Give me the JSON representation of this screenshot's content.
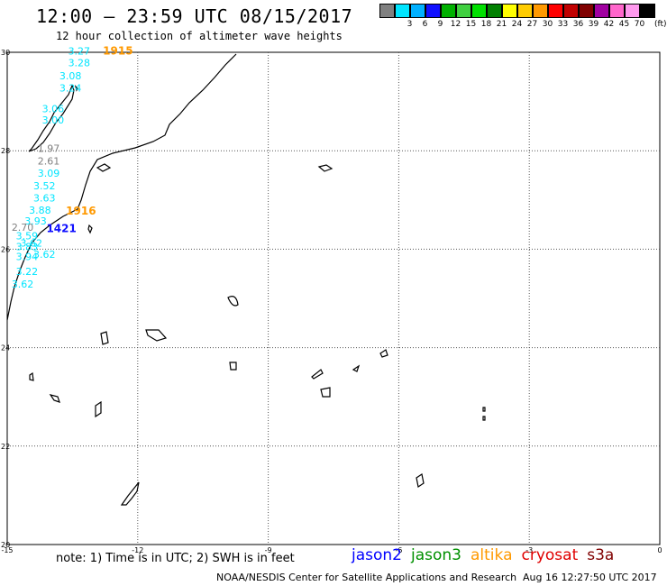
{
  "title": "12:00 – 23:59 UTC 08/15/2017",
  "subtitle": "12 hour collection of altimeter wave heights",
  "legend": {
    "unit": "(ft)",
    "items": [
      {
        "color": "#808080",
        "label": ""
      },
      {
        "color": "#00e5ff",
        "label": "3"
      },
      {
        "color": "#00b0ff",
        "label": "6"
      },
      {
        "color": "#1010ff",
        "label": "9"
      },
      {
        "color": "#00b000",
        "label": "12"
      },
      {
        "color": "#40d040",
        "label": "15"
      },
      {
        "color": "#00e000",
        "label": "18"
      },
      {
        "color": "#008000",
        "label": "21"
      },
      {
        "color": "#ffff00",
        "label": "24"
      },
      {
        "color": "#ffcc00",
        "label": "27"
      },
      {
        "color": "#ff9900",
        "label": "30"
      },
      {
        "color": "#ff0000",
        "label": "33"
      },
      {
        "color": "#c00000",
        "label": "36"
      },
      {
        "color": "#800000",
        "label": "39"
      },
      {
        "color": "#a000a0",
        "label": "42"
      },
      {
        "color": "#ff66cc",
        "label": "45"
      },
      {
        "color": "#ff99ee",
        "label": "70"
      },
      {
        "color": "#000000",
        "label": ""
      }
    ]
  },
  "map": {
    "lon_range": [
      -15,
      0
    ],
    "lat_range": [
      20,
      30
    ],
    "x_ticks": [
      "-15",
      "-12",
      "-9",
      "-6",
      "-3",
      "0"
    ],
    "y_ticks": [
      "30",
      "28",
      "26",
      "24",
      "22",
      "20"
    ],
    "observations": [
      {
        "text": "3.27",
        "color": "#00e5ff",
        "lon": -13.6,
        "lat": 29.95
      },
      {
        "text": "3.28",
        "color": "#00e5ff",
        "lon": -13.6,
        "lat": 29.72
      },
      {
        "text": "3.08",
        "color": "#00e5ff",
        "lon": -13.8,
        "lat": 29.45
      },
      {
        "text": "3.24",
        "color": "#00e5ff",
        "lon": -13.8,
        "lat": 29.2
      },
      {
        "text": "3.06",
        "color": "#00e5ff",
        "lon": -14.2,
        "lat": 28.78
      },
      {
        "text": "3.00",
        "color": "#00e5ff",
        "lon": -14.2,
        "lat": 28.55
      },
      {
        "text": "1.97",
        "color": "#808080",
        "lon": -14.3,
        "lat": 27.98
      },
      {
        "text": "2.61",
        "color": "#808080",
        "lon": -14.3,
        "lat": 27.72
      },
      {
        "text": "3.09",
        "color": "#00e5ff",
        "lon": -14.3,
        "lat": 27.47
      },
      {
        "text": "3.52",
        "color": "#00e5ff",
        "lon": -14.4,
        "lat": 27.22
      },
      {
        "text": "3.63",
        "color": "#00e5ff",
        "lon": -14.4,
        "lat": 26.97
      },
      {
        "text": "3.88",
        "color": "#00e5ff",
        "lon": -14.5,
        "lat": 26.72
      },
      {
        "text": "3.93",
        "color": "#00e5ff",
        "lon": -14.6,
        "lat": 26.5
      },
      {
        "text": "2.70",
        "color": "#808080",
        "lon": -14.9,
        "lat": 26.37
      },
      {
        "text": "3.59",
        "color": "#00e5ff",
        "lon": -14.8,
        "lat": 26.2
      },
      {
        "text": "3.62",
        "color": "#00e5ff",
        "lon": -14.7,
        "lat": 26.05
      },
      {
        "text": "3.83",
        "color": "#00e5ff",
        "lon": -14.8,
        "lat": 25.98
      },
      {
        "text": "3.62",
        "color": "#00e5ff",
        "lon": -14.4,
        "lat": 25.82
      },
      {
        "text": "3.94",
        "color": "#00e5ff",
        "lon": -14.8,
        "lat": 25.78
      },
      {
        "text": "3.22",
        "color": "#00e5ff",
        "lon": -14.8,
        "lat": 25.48
      },
      {
        "text": "3.62",
        "color": "#00e5ff",
        "lon": -14.9,
        "lat": 25.22
      }
    ],
    "time_labels": [
      {
        "text": "1915",
        "color": "#ff9900",
        "lon": -12.8,
        "lat": 29.95
      },
      {
        "text": "1916",
        "color": "#ff9900",
        "lon": -13.65,
        "lat": 26.7
      },
      {
        "text": "1421",
        "color": "#1010ff",
        "lon": -14.1,
        "lat": 26.35
      }
    ]
  },
  "note": "note: 1) Time is in UTC; 2) SWH is in feet",
  "satellites": [
    {
      "name": "jason2",
      "color": "#0000ff"
    },
    {
      "name": "jason3",
      "color": "#009000"
    },
    {
      "name": "altika",
      "color": "#ff9900"
    },
    {
      "name": "cryosat",
      "color": "#e00000"
    },
    {
      "name": "s3a",
      "color": "#800000"
    }
  ],
  "footer": "NOAA/NESDIS Center for Satellite Applications and Research",
  "footer_time": "Aug 16 12:27:50 UTC 2017"
}
